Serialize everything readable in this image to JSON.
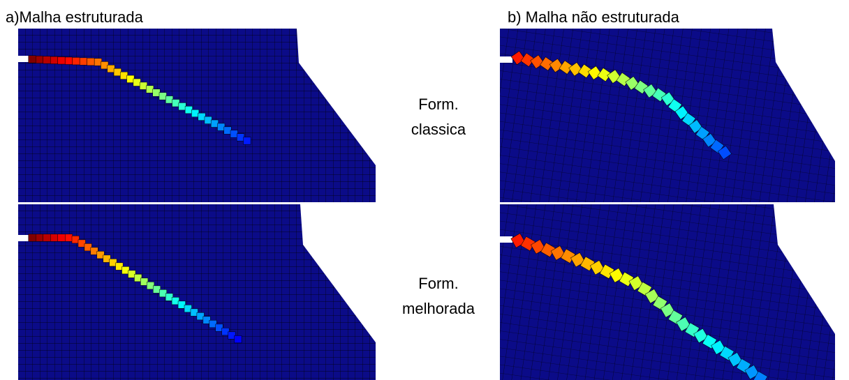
{
  "columns": {
    "a": "a)Malha estruturada",
    "b": "b) Malha não estruturada"
  },
  "row_labels": [
    [
      "Form.",
      "classica"
    ],
    [
      "Form.",
      "melhorada"
    ]
  ]
}
